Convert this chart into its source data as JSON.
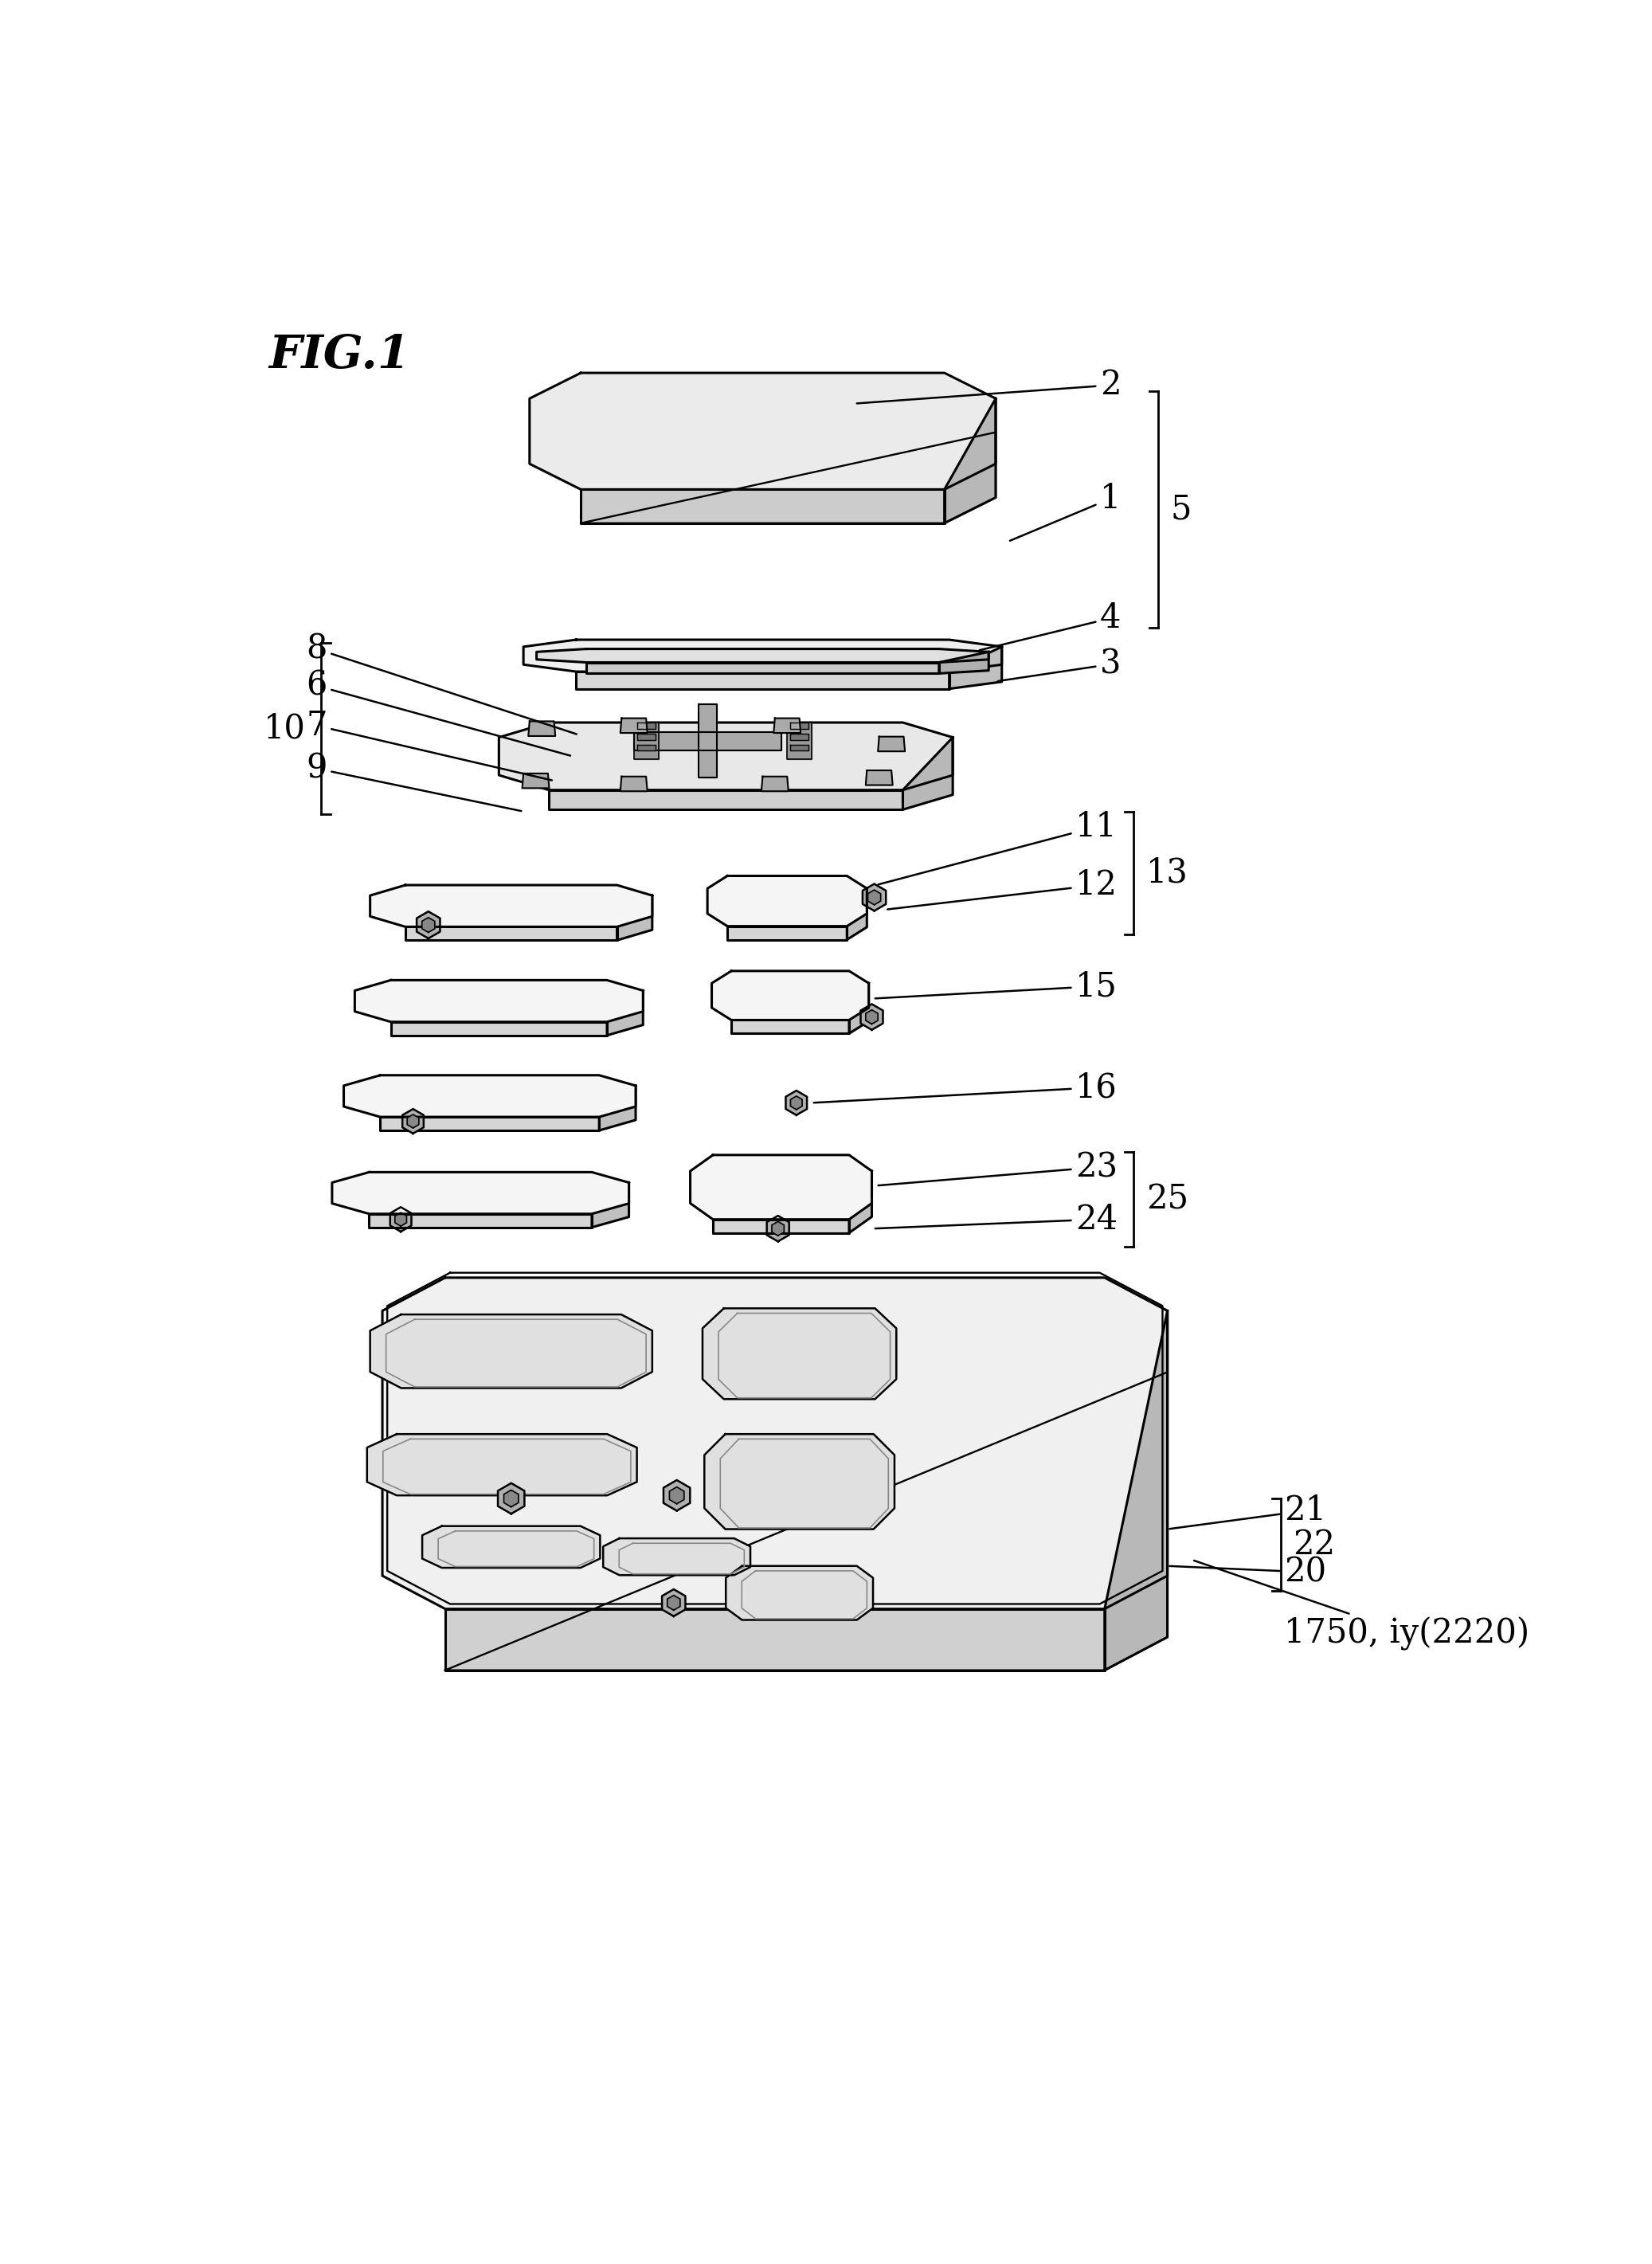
{
  "background_color": "#ffffff",
  "line_color": "#000000",
  "line_width": 2.0,
  "fig_width": 20.74,
  "fig_height": 28.42,
  "fig_title": "FIG.1"
}
